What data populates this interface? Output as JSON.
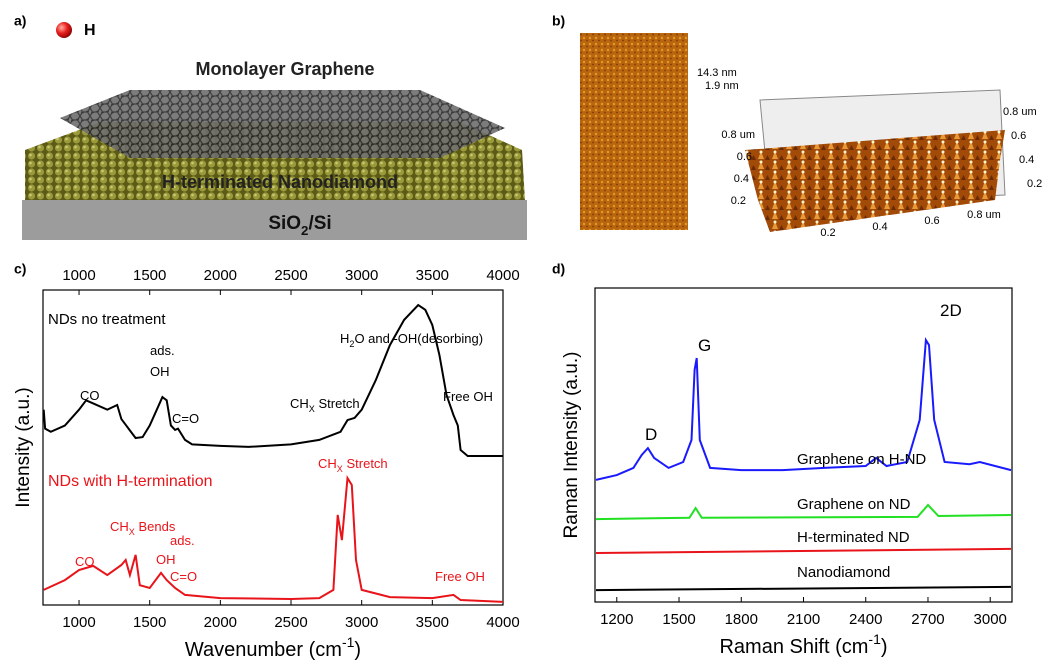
{
  "panels": {
    "a": {
      "label": "a)",
      "legend": "H",
      "title": "Monolayer Graphene",
      "layer": "H-terminated Nanodiamond",
      "substrate": {
        "text": "SiO",
        "sub": "2",
        "after": "/Si"
      }
    },
    "b": {
      "label": "b)",
      "z_labels": [
        "14.3 nm",
        "1.9 nm"
      ],
      "left_axis": [
        "0.8 um",
        "0.6",
        "0.4",
        "0.2"
      ],
      "right_axis": [
        "0.8 um",
        "0.6",
        "0.4",
        "0.2"
      ],
      "bottom_axis": [
        "0.2",
        "0.4",
        "0.6",
        "0.8 um"
      ]
    },
    "c": {
      "label": "c)"
    },
    "d": {
      "label": "d)"
    }
  },
  "chart_data": [
    {
      "type": "line",
      "xlabel": {
        "text": "Wavenumber (cm",
        "sup": "-1",
        "after": ")"
      },
      "ylabel": "Intensity (a.u.)",
      "xlim": [
        745,
        4000
      ],
      "ylim": [
        0,
        100
      ],
      "xticks": [
        1000,
        1500,
        2000,
        2500,
        3000,
        3500,
        4000
      ],
      "series": [
        {
          "name": "NDs no treatment",
          "color": "#000000",
          "x": [
            750,
            760,
            800,
            900,
            1000,
            1050,
            1100,
            1200,
            1270,
            1300,
            1400,
            1450,
            1500,
            1550,
            1590,
            1620,
            1650,
            1680,
            1700,
            1750,
            1800,
            2000,
            2200,
            2500,
            2700,
            2850,
            2900,
            2950,
            3000,
            3100,
            3200,
            3300,
            3400,
            3450,
            3500,
            3550,
            3600,
            3650,
            3680,
            3700,
            3750,
            4000
          ],
          "values": [
            62,
            56,
            55,
            57,
            62,
            65,
            64,
            62,
            63.5,
            59,
            53,
            53.3,
            57,
            62,
            66,
            65,
            57,
            55.6,
            56,
            52.4,
            51,
            50.5,
            50.2,
            51,
            52.4,
            55,
            58.7,
            59.4,
            62,
            71.4,
            82.5,
            90.5,
            95.2,
            93.7,
            88.9,
            79.4,
            66.7,
            60.3,
            57,
            49.2,
            47.3,
            47.3
          ]
        },
        {
          "name": "NDs with H-termination",
          "color": "#e8141a",
          "x": [
            750,
            900,
            1000,
            1100,
            1200,
            1300,
            1330,
            1360,
            1400,
            1430,
            1500,
            1580,
            1620,
            1680,
            1750,
            2000,
            2500,
            2700,
            2800,
            2830,
            2860,
            2900,
            2930,
            2960,
            3000,
            3200,
            3500,
            3650,
            3700,
            4000
          ],
          "values": [
            4.8,
            7.9,
            11.1,
            12.4,
            9.5,
            12.7,
            14.3,
            9.5,
            15.9,
            6.3,
            5.4,
            10.2,
            7.9,
            5.4,
            3.2,
            2.2,
            1.9,
            2.2,
            4.8,
            28.6,
            20.6,
            40.3,
            38.1,
            14.3,
            4.8,
            2.5,
            2.2,
            3.2,
            1.6,
            1
          ]
        }
      ],
      "annotations": [
        {
          "text": "CO",
          "color": "#000000"
        },
        {
          "text": "ads.",
          "color": "#000000"
        },
        {
          "text": "OH",
          "color": "#000000"
        },
        {
          "text": "C=O",
          "color": "#000000"
        },
        {
          "text": "CH",
          "sub": "X",
          "after": " Stretch",
          "color": "#000000"
        },
        {
          "text": "H",
          "sub": "2",
          "after": "O and -OH(desorbing)",
          "color": "#000000"
        },
        {
          "text": "Free OH",
          "color": "#000000"
        },
        {
          "text": "CH",
          "sub": "X",
          "after": " Stretch",
          "color": "#e8141a"
        },
        {
          "text": "CH",
          "sub": "X",
          "after": " Bends",
          "color": "#e8141a"
        },
        {
          "text": "ads.",
          "color": "#e8141a"
        },
        {
          "text": "OH",
          "color": "#e8141a"
        },
        {
          "text": "C=O",
          "color": "#e8141a"
        },
        {
          "text": "CO",
          "color": "#e8141a"
        },
        {
          "text": "Free OH",
          "color": "#e8141a"
        }
      ]
    },
    {
      "type": "line",
      "xlabel": {
        "text": "Raman Shift (cm",
        "sup": "-1",
        "after": ")"
      },
      "ylabel": "Raman Intensity (a.u.)",
      "xlim": [
        1095,
        3105
      ],
      "ylim": [
        0,
        100
      ],
      "xticks": [
        1200,
        1500,
        1800,
        2100,
        2400,
        2700,
        3000
      ],
      "series": [
        {
          "name": "Graphene on H-ND",
          "color": "#1a1aff",
          "x": [
            1100,
            1200,
            1280,
            1320,
            1350,
            1380,
            1450,
            1520,
            1560,
            1575,
            1585,
            1600,
            1650,
            1800,
            2000,
            2200,
            2400,
            2450,
            2500,
            2600,
            2660,
            2690,
            2705,
            2730,
            2780,
            2900,
            2950,
            3100
          ],
          "values": [
            38.9,
            40.4,
            42.7,
            46.8,
            49,
            45.9,
            42.7,
            44.6,
            51.6,
            73.9,
            77.7,
            51.6,
            42.7,
            42,
            42,
            42.7,
            43.3,
            45.9,
            43.3,
            44.6,
            58,
            83.4,
            81.8,
            58,
            44.6,
            43.9,
            44.6,
            42
          ]
        },
        {
          "name": "Graphene on ND",
          "color": "#22e022",
          "x": [
            1100,
            1550,
            1580,
            1610,
            2650,
            2700,
            2750,
            3100
          ],
          "values": [
            26.4,
            26.8,
            29.9,
            26.8,
            27.1,
            30.9,
            27.4,
            27.7
          ]
        },
        {
          "name": "H-terminated ND",
          "color": "#e8141a",
          "x": [
            1100,
            3100
          ],
          "values": [
            15.6,
            16.9
          ]
        },
        {
          "name": "Nanodiamond",
          "color": "#000000",
          "x": [
            1100,
            3100
          ],
          "values": [
            3.8,
            4.8
          ]
        }
      ],
      "annotations": [
        {
          "text": "D"
        },
        {
          "text": "G"
        },
        {
          "text": "2D"
        }
      ]
    }
  ]
}
